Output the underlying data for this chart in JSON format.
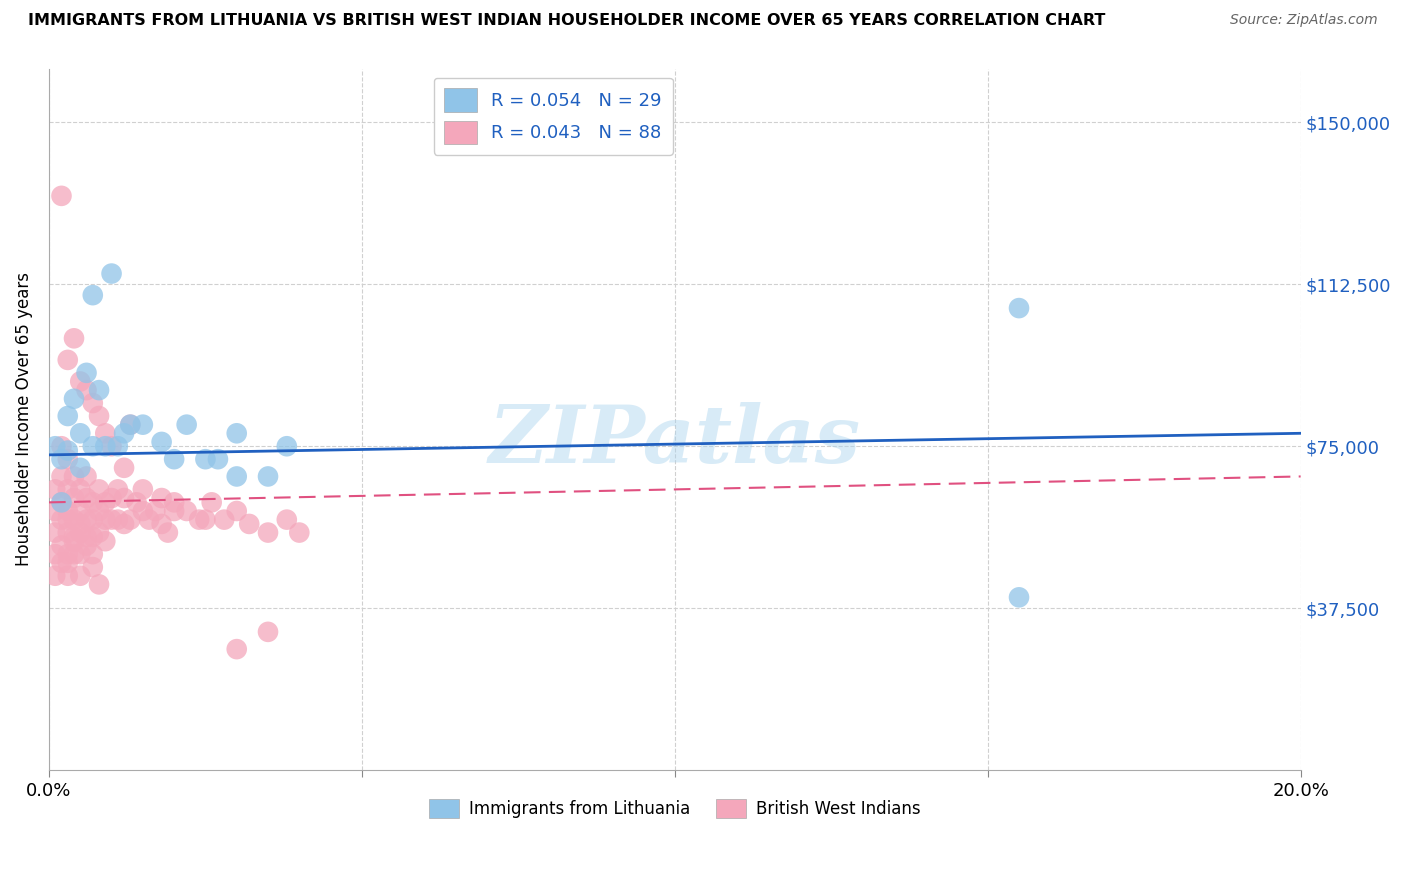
{
  "title": "IMMIGRANTS FROM LITHUANIA VS BRITISH WEST INDIAN HOUSEHOLDER INCOME OVER 65 YEARS CORRELATION CHART",
  "source": "Source: ZipAtlas.com",
  "ylabel": "Householder Income Over 65 years",
  "watermark": "ZIPatlas",
  "xlim": [
    0.0,
    0.2
  ],
  "ylim": [
    0,
    162500
  ],
  "yticks": [
    0,
    37500,
    75000,
    112500,
    150000
  ],
  "ytick_labels": [
    "",
    "$37,500",
    "$75,000",
    "$112,500",
    "$150,000"
  ],
  "xticks": [
    0.0,
    0.05,
    0.1,
    0.15,
    0.2
  ],
  "xtick_labels": [
    "0.0%",
    "",
    "",
    "",
    "20.0%"
  ],
  "lithuania_color": "#90c4e8",
  "bwi_color": "#f4a7bb",
  "line_blue": "#2060c0",
  "line_pink": "#e05080",
  "R_lithuania": 0.054,
  "N_lithuania": 29,
  "R_bwi": 0.043,
  "N_bwi": 88,
  "lit_x": [
    0.001,
    0.002,
    0.002,
    0.003,
    0.004,
    0.005,
    0.005,
    0.006,
    0.007,
    0.007,
    0.008,
    0.009,
    0.01,
    0.011,
    0.012,
    0.013,
    0.015,
    0.018,
    0.02,
    0.022,
    0.025,
    0.027,
    0.03,
    0.03,
    0.035,
    0.038,
    0.155,
    0.155,
    0.003
  ],
  "lit_y": [
    75000,
    72000,
    62000,
    82000,
    86000,
    78000,
    70000,
    92000,
    110000,
    75000,
    88000,
    75000,
    115000,
    75000,
    78000,
    80000,
    80000,
    76000,
    72000,
    80000,
    72000,
    72000,
    68000,
    78000,
    68000,
    75000,
    107000,
    40000,
    74000
  ],
  "bwi_x": [
    0.001,
    0.001,
    0.001,
    0.001,
    0.001,
    0.002,
    0.002,
    0.002,
    0.002,
    0.002,
    0.002,
    0.003,
    0.003,
    0.003,
    0.003,
    0.003,
    0.003,
    0.003,
    0.004,
    0.004,
    0.004,
    0.004,
    0.004,
    0.005,
    0.005,
    0.005,
    0.005,
    0.005,
    0.006,
    0.006,
    0.006,
    0.006,
    0.007,
    0.007,
    0.007,
    0.007,
    0.008,
    0.008,
    0.008,
    0.009,
    0.009,
    0.009,
    0.01,
    0.01,
    0.011,
    0.011,
    0.012,
    0.012,
    0.013,
    0.013,
    0.014,
    0.015,
    0.016,
    0.017,
    0.018,
    0.019,
    0.02,
    0.022,
    0.024,
    0.026,
    0.028,
    0.03,
    0.032,
    0.035,
    0.038,
    0.04,
    0.002,
    0.003,
    0.004,
    0.005,
    0.006,
    0.007,
    0.008,
    0.009,
    0.01,
    0.012,
    0.015,
    0.018,
    0.02,
    0.025,
    0.03,
    0.035,
    0.003,
    0.004,
    0.005,
    0.006,
    0.007,
    0.008
  ],
  "bwi_y": [
    60000,
    55000,
    50000,
    45000,
    65000,
    68000,
    62000,
    58000,
    52000,
    48000,
    75000,
    65000,
    60000,
    55000,
    50000,
    45000,
    72000,
    58000,
    63000,
    58000,
    54000,
    50000,
    68000,
    65000,
    60000,
    55000,
    50000,
    45000,
    68000,
    63000,
    58000,
    54000,
    62000,
    58000,
    54000,
    50000,
    65000,
    60000,
    55000,
    62000,
    58000,
    53000,
    63000,
    58000,
    65000,
    58000,
    63000,
    57000,
    80000,
    58000,
    62000,
    60000,
    58000,
    60000,
    57000,
    55000,
    62000,
    60000,
    58000,
    62000,
    58000,
    60000,
    57000,
    55000,
    58000,
    55000,
    133000,
    95000,
    100000,
    90000,
    88000,
    85000,
    82000,
    78000,
    75000,
    70000,
    65000,
    63000,
    60000,
    58000,
    28000,
    32000,
    48000,
    53000,
    57000,
    52000,
    47000,
    43000
  ]
}
